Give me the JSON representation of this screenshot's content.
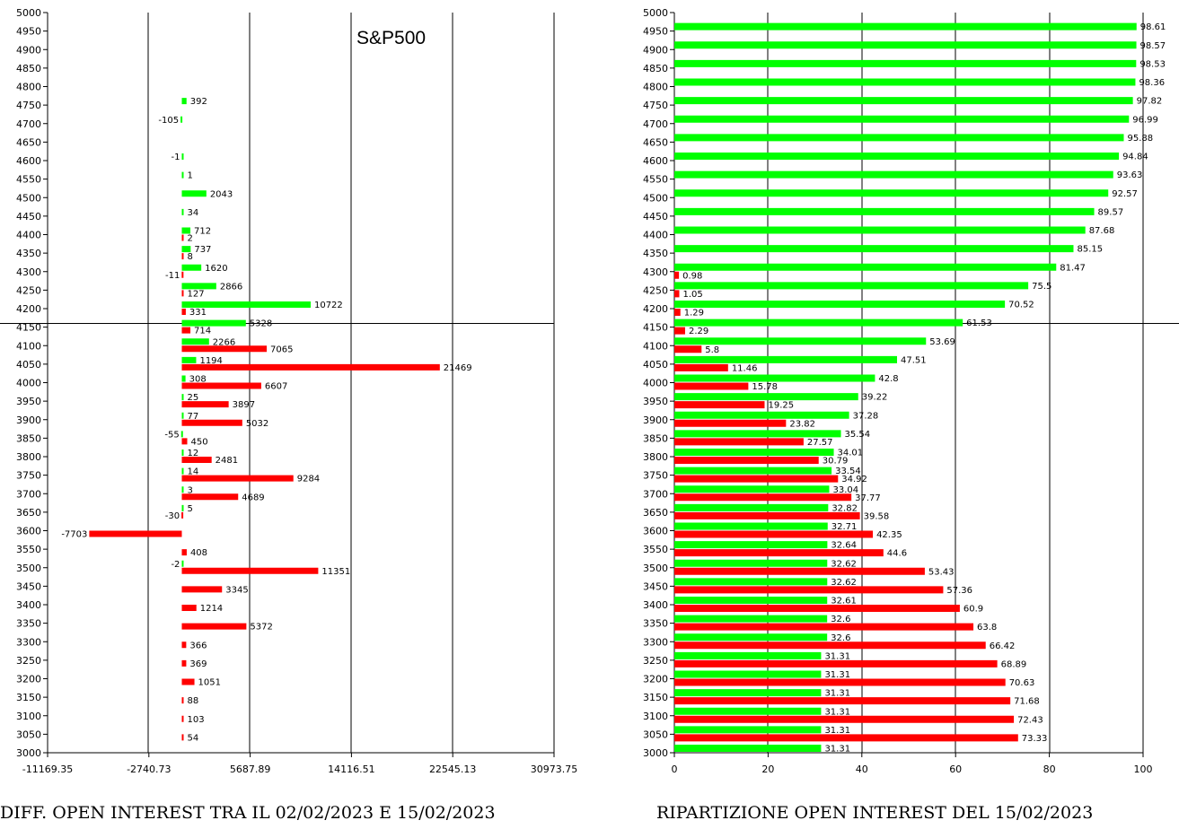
{
  "chart_data": [
    {
      "type": "bar",
      "orientation": "horizontal",
      "title": "S&P500",
      "xlabel": "DIFF. OPEN INTEREST TRA IL 02/02/2023 E 15/02/2023",
      "ylabel": "",
      "categories": [
        4750,
        4700,
        4650,
        4600,
        4550,
        4500,
        4450,
        4400,
        4350,
        4300,
        4250,
        4200,
        4150,
        4100,
        4050,
        4000,
        3950,
        3900,
        3850,
        3800,
        3750,
        3700,
        3650,
        3600,
        3550,
        3500,
        3450,
        3400,
        3350,
        3300,
        3250,
        3200,
        3150,
        3100,
        3050
      ],
      "series": [
        {
          "color": "#00ff00",
          "values": [
            392,
            -105,
            null,
            -1,
            1,
            2043,
            34,
            712,
            737,
            1620,
            2866,
            10722,
            5328,
            2266,
            1194,
            308,
            25,
            77,
            -55,
            12,
            14,
            3,
            5,
            null,
            null,
            -2,
            null,
            null,
            null,
            null,
            null,
            null,
            null,
            null,
            null
          ]
        },
        {
          "color": "#ff0000",
          "values": [
            null,
            null,
            null,
            null,
            null,
            null,
            null,
            2,
            8,
            -11,
            127,
            331,
            714,
            7065,
            21469,
            6607,
            3897,
            5032,
            450,
            2481,
            9284,
            4689,
            -30,
            -7703,
            408,
            11351,
            3345,
            1214,
            5372,
            366,
            369,
            1051,
            88,
            103,
            54
          ]
        }
      ],
      "xlim": [
        -11169.35,
        30973.75
      ],
      "xticks": [
        "-11169.35",
        "-2740.73",
        "5687.89",
        "14116.51",
        "22545.13",
        "30973.75"
      ],
      "ylim": [
        3000,
        5000
      ],
      "yticks": [
        "3000",
        "3050",
        "3100",
        "3150",
        "3200",
        "3250",
        "3300",
        "3350",
        "3400",
        "3450",
        "3500",
        "3550",
        "3600",
        "3650",
        "3700",
        "3750",
        "3800",
        "3850",
        "3900",
        "3950",
        "4000",
        "4050",
        "4100",
        "4150",
        "4200",
        "4250",
        "4300",
        "4350",
        "4400",
        "4450",
        "4500",
        "4550",
        "4600",
        "4650",
        "4700",
        "4750",
        "4800",
        "4850",
        "4900",
        "4950",
        "5000"
      ],
      "crosshair_y": 4160,
      "grid": "vertical"
    },
    {
      "type": "bar",
      "orientation": "horizontal",
      "title": "",
      "xlabel": "RIPARTIZIONE OPEN INTEREST DEL 15/02/2023",
      "ylabel": "",
      "categories": [
        4950,
        4900,
        4850,
        4800,
        4750,
        4700,
        4650,
        4600,
        4550,
        4500,
        4450,
        4400,
        4350,
        4300,
        4250,
        4200,
        4150,
        4100,
        4050,
        4000,
        3950,
        3900,
        3850,
        3800,
        3750,
        3700,
        3650,
        3600,
        3550,
        3500,
        3450,
        3400,
        3350,
        3300,
        3250,
        3200,
        3150,
        3100,
        3050,
        3000
      ],
      "series": [
        {
          "color": "#00ff00",
          "values": [
            98.61,
            98.57,
            98.53,
            98.36,
            97.82,
            96.99,
            95.88,
            94.84,
            93.63,
            92.57,
            89.57,
            87.68,
            85.15,
            81.47,
            75.5,
            70.52,
            61.53,
            53.69,
            47.51,
            42.8,
            39.22,
            37.28,
            35.54,
            34.01,
            33.54,
            33.04,
            32.82,
            32.71,
            32.64,
            32.62,
            32.62,
            32.61,
            32.6,
            32.6,
            31.31,
            31.31,
            31.31,
            31.31,
            31.31,
            31.31
          ]
        },
        {
          "color": "#ff0000",
          "values": [
            null,
            null,
            null,
            null,
            null,
            null,
            null,
            null,
            null,
            null,
            null,
            null,
            null,
            0.98,
            1.05,
            1.29,
            2.29,
            5.8,
            11.46,
            15.78,
            19.25,
            23.82,
            27.57,
            30.79,
            34.92,
            37.77,
            39.58,
            42.35,
            44.6,
            53.43,
            57.36,
            60.9,
            63.8,
            66.42,
            68.89,
            70.63,
            71.68,
            72.43,
            73.33,
            null
          ]
        }
      ],
      "xlim": [
        0,
        100
      ],
      "xticks": [
        "0",
        "20",
        "40",
        "60",
        "80",
        "100"
      ],
      "ylim": [
        3000,
        5000
      ],
      "yticks": [
        "3000",
        "3050",
        "3100",
        "3150",
        "3200",
        "3250",
        "3300",
        "3350",
        "3400",
        "3450",
        "3500",
        "3550",
        "3600",
        "3650",
        "3700",
        "3750",
        "3800",
        "3850",
        "3900",
        "3950",
        "4000",
        "4050",
        "4100",
        "4150",
        "4200",
        "4250",
        "4300",
        "4350",
        "4400",
        "4450",
        "4500",
        "4550",
        "4600",
        "4650",
        "4700",
        "4750",
        "4800",
        "4850",
        "4900",
        "4950",
        "5000"
      ],
      "crosshair_y": 4160,
      "grid": "vertical"
    }
  ]
}
